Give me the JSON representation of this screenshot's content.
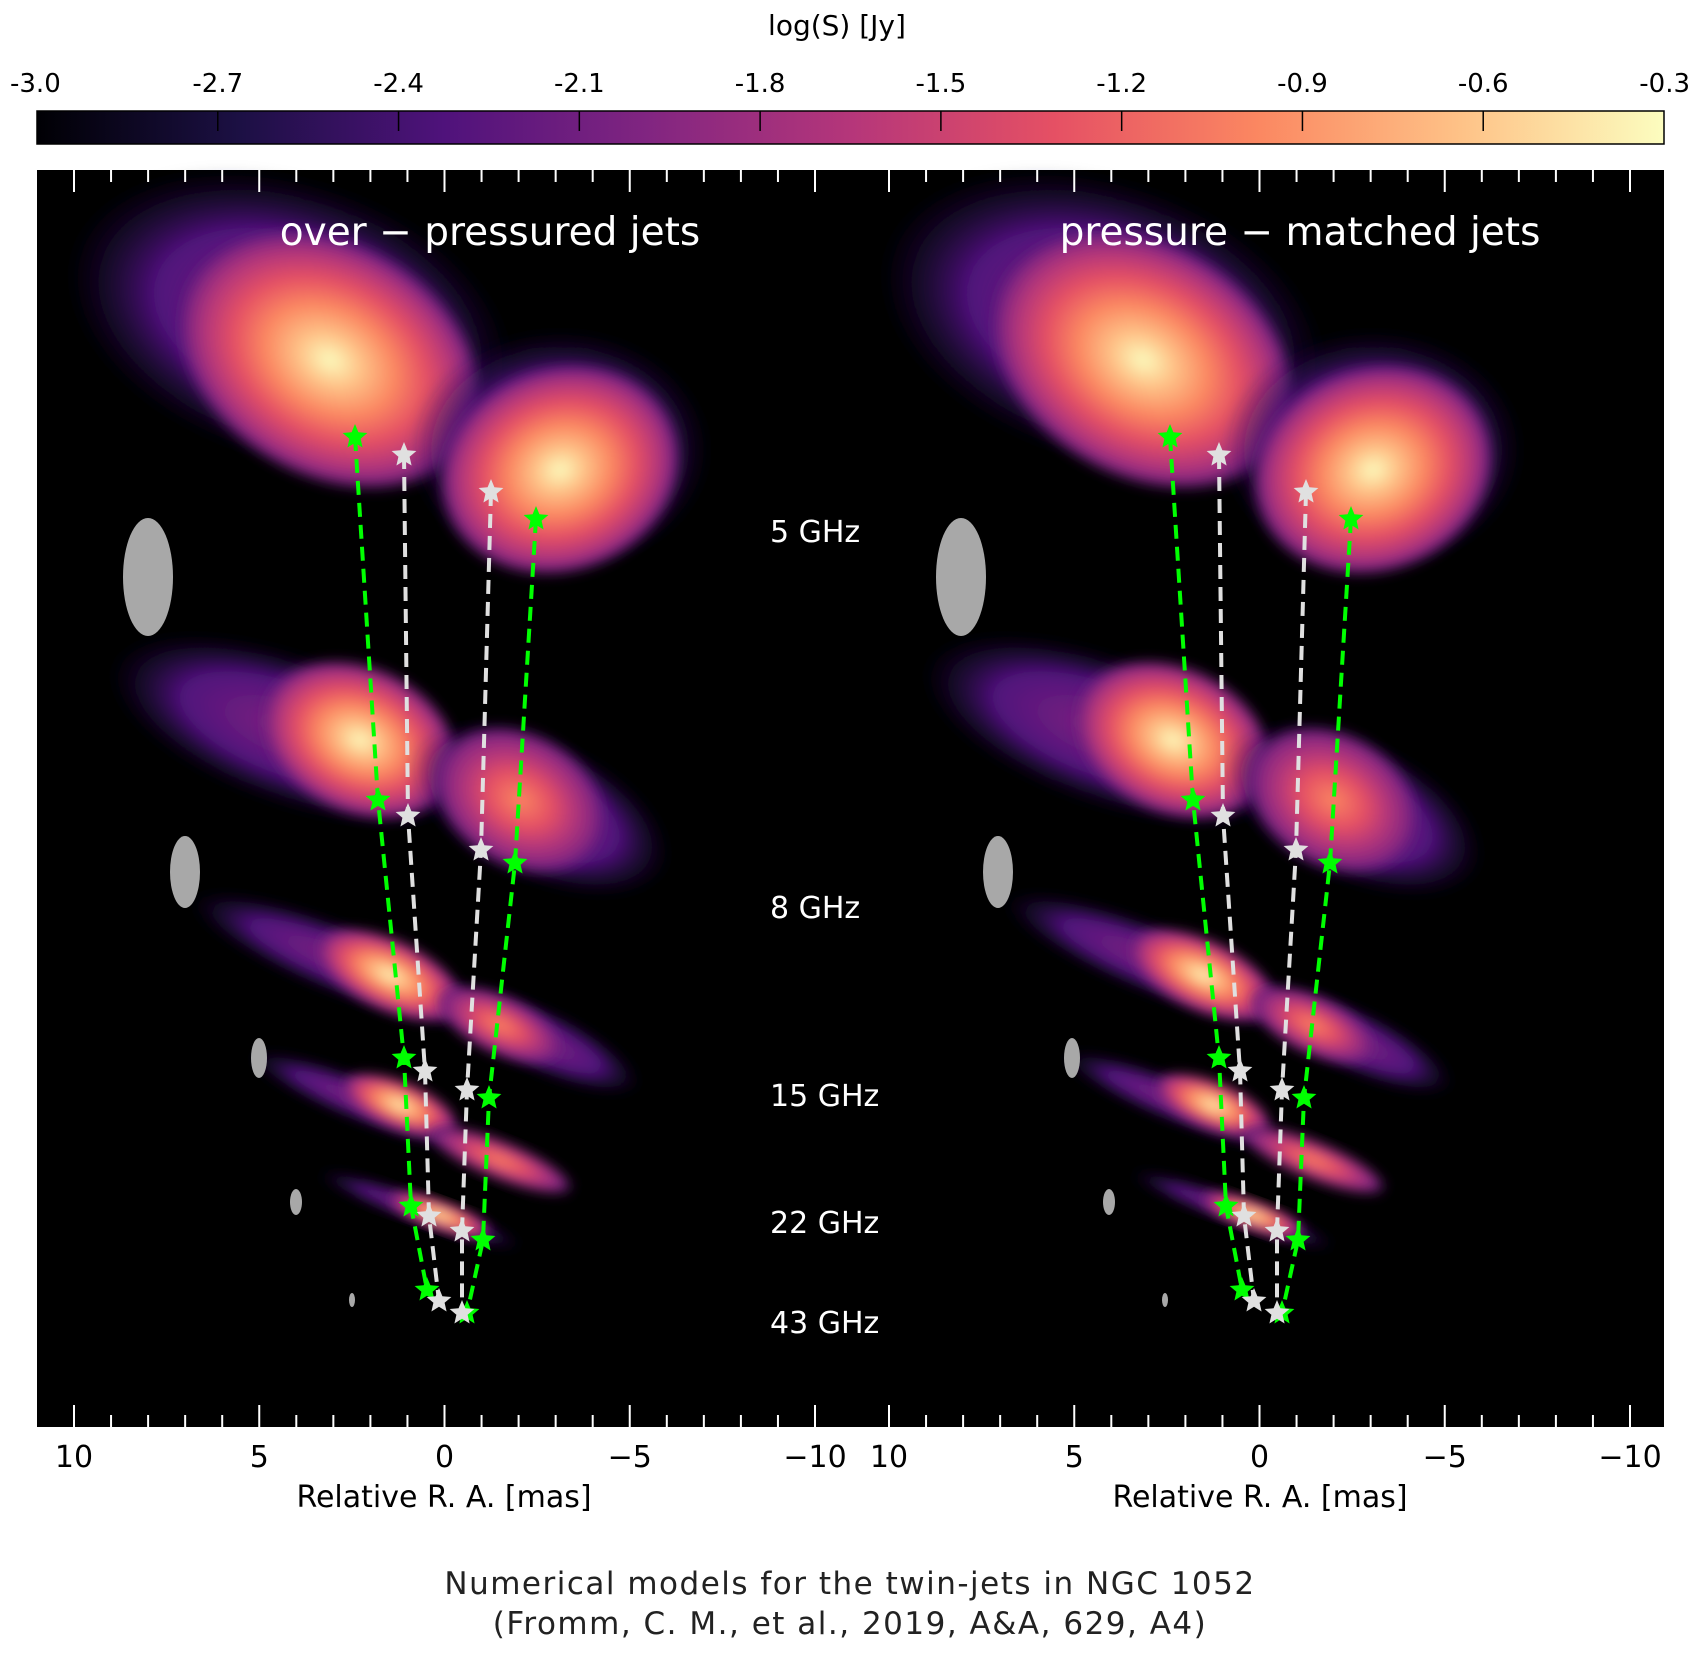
{
  "colorbar": {
    "label": "log(S) [Jy]",
    "ticks": [
      "-3.0",
      "-2.7",
      "-2.4",
      "-2.1",
      "-1.8",
      "-1.5",
      "-1.2",
      "-0.9",
      "-0.6",
      "-0.3"
    ],
    "range": [
      -3.0,
      -0.3
    ],
    "colormap": "magma",
    "stops": [
      "#000004",
      "#1c1044",
      "#4f127b",
      "#812581",
      "#b5367a",
      "#e55064",
      "#fb8761",
      "#fec287",
      "#fcfdbf"
    ]
  },
  "panels": [
    {
      "title": "over − pressured jets",
      "xlabel": "Relative R. A. [mas]",
      "x_ticks": [
        "10",
        "5",
        "0",
        "−5",
        "−10"
      ]
    },
    {
      "title": "pressure − matched jets",
      "xlabel": "Relative R. A. [mas]",
      "x_ticks": [
        "10",
        "5",
        "0",
        "−5",
        "−10"
      ]
    }
  ],
  "frequency_labels": [
    "5 GHz",
    "8 GHz",
    "15 GHz",
    "22 GHz",
    "43 GHz"
  ],
  "colors": {
    "background": "#000000",
    "green_markers": "#00ff00",
    "white_markers": "#e0e0e0",
    "beam": "#a8a8a8"
  },
  "caption": {
    "line1": "Numerical models for the twin-jets in NGC 1052",
    "line2": "(Fromm, C. M., et al., 2019, A&A, 629, A4)"
  }
}
